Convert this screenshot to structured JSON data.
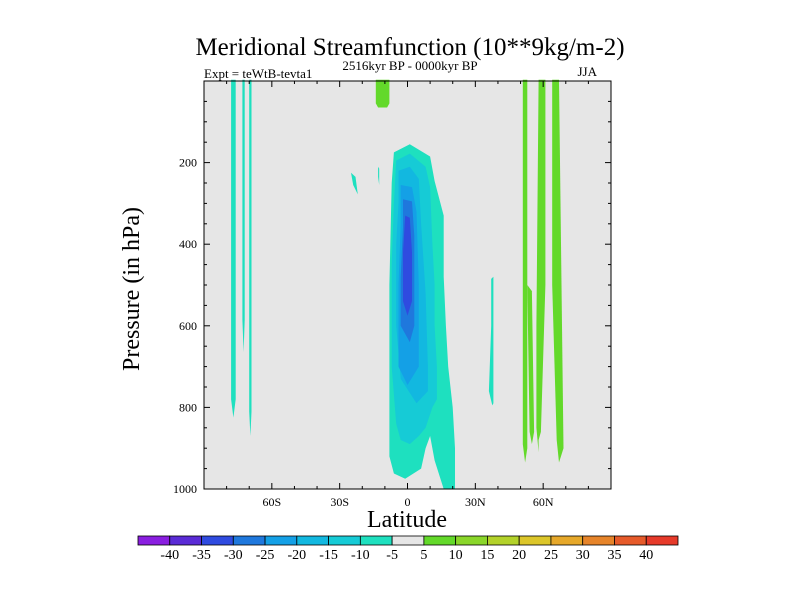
{
  "chart_data": {
    "type": "heatmap",
    "title": "Meridional Streamfunction (10**9kg/m-2)",
    "subtitle_left": "Expt = teWtB-tevta1",
    "subtitle_center": "2516kyr BP - 0000kyr BP",
    "subtitle_right": "JJA",
    "xlabel": "Latitude",
    "ylabel": "Pressure (in hPa)",
    "xlim": [
      -90,
      90
    ],
    "ylim": [
      1000,
      0
    ],
    "x_ticks": [
      {
        "value": -60,
        "label": "60S"
      },
      {
        "value": -30,
        "label": "30S"
      },
      {
        "value": 0,
        "label": "0"
      },
      {
        "value": 30,
        "label": "30N"
      },
      {
        "value": 60,
        "label": "60N"
      }
    ],
    "y_ticks": [
      {
        "value": 200,
        "label": "200"
      },
      {
        "value": 400,
        "label": "400"
      },
      {
        "value": 600,
        "label": "600"
      },
      {
        "value": 800,
        "label": "800"
      },
      {
        "value": 1000,
        "label": "1000"
      }
    ],
    "background_color": "#e6e6e6",
    "colorbar": {
      "labels": [
        "-40",
        "-35",
        "-30",
        "-25",
        "-20",
        "-15",
        "-10",
        "-5",
        "5",
        "10",
        "15",
        "20",
        "25",
        "30",
        "35",
        "40"
      ],
      "colors": [
        "#8a1ee0",
        "#5a2bd6",
        "#2f4be0",
        "#1f78dd",
        "#14a0e6",
        "#12b8e0",
        "#16cbd6",
        "#1ee0bf",
        "#e6e6e6",
        "#63d92a",
        "#8ad62a",
        "#b3d22a",
        "#dcc62a",
        "#e6a82a",
        "#e6842a",
        "#e65a2a",
        "#e63a2a"
      ]
    },
    "regions": [
      {
        "name": "sh-highlat-band-1",
        "value": -5,
        "color": "#1ee0bf",
        "points": [
          [
            -78,
            -3
          ],
          [
            -76,
            -3
          ],
          [
            -76,
            780
          ],
          [
            -77,
            825
          ],
          [
            -78,
            780
          ]
        ]
      },
      {
        "name": "sh-highlat-band-2",
        "value": -5,
        "color": "#1ee0bf",
        "points": [
          [
            -73,
            -3
          ],
          [
            -72,
            -3
          ],
          [
            -72,
            585
          ],
          [
            -72.5,
            665
          ],
          [
            -73,
            585
          ]
        ]
      },
      {
        "name": "sh-highlat-band-3",
        "value": -5,
        "color": "#1ee0bf",
        "points": [
          [
            -70,
            -3
          ],
          [
            -69,
            -3
          ],
          [
            -69,
            810
          ],
          [
            -69.5,
            870
          ],
          [
            -70,
            810
          ]
        ]
      },
      {
        "name": "nh-upper-lobe",
        "value": 5,
        "color": "#63d92a",
        "points": [
          [
            -14,
            -3
          ],
          [
            -8,
            -3
          ],
          [
            -8,
            55
          ],
          [
            -9,
            65
          ],
          [
            -13,
            65
          ],
          [
            -14,
            55
          ]
        ]
      },
      {
        "name": "sh-midlat-fleck",
        "value": -5,
        "color": "#1ee0bf",
        "points": [
          [
            -25,
            225
          ],
          [
            -23,
            235
          ],
          [
            -22,
            278
          ],
          [
            -24,
            255
          ]
        ]
      },
      {
        "name": "sh-subtrop-fleck",
        "value": -5,
        "color": "#1ee0bf",
        "points": [
          [
            -13,
            210
          ],
          [
            -12.5,
            215
          ],
          [
            -12.5,
            255
          ],
          [
            -13,
            235
          ]
        ]
      },
      {
        "name": "hadley-cell-m5",
        "value": -5,
        "color": "#1ee0bf",
        "points": [
          [
            -6,
            175
          ],
          [
            1,
            155
          ],
          [
            10,
            185
          ],
          [
            12,
            245
          ],
          [
            16,
            330
          ],
          [
            16,
            480
          ],
          [
            17,
            600
          ],
          [
            18,
            700
          ],
          [
            20,
            800
          ],
          [
            21,
            900
          ],
          [
            21,
            1000
          ],
          [
            16,
            1000
          ],
          [
            12,
            930
          ],
          [
            10,
            870
          ],
          [
            8,
            900
          ],
          [
            6,
            950
          ],
          [
            -1,
            975
          ],
          [
            -6,
            962
          ],
          [
            -8,
            920
          ],
          [
            -8,
            500
          ],
          [
            -7,
            250
          ]
        ]
      },
      {
        "name": "hadley-cell-m10",
        "value": -10,
        "color": "#16cbd6",
        "points": [
          [
            -5,
            195
          ],
          [
            1,
            178
          ],
          [
            8,
            210
          ],
          [
            10,
            260
          ],
          [
            11,
            400
          ],
          [
            12,
            500
          ],
          [
            12,
            600
          ],
          [
            13,
            700
          ],
          [
            13,
            780
          ],
          [
            11,
            800
          ],
          [
            8,
            850
          ],
          [
            5,
            870
          ],
          [
            1,
            890
          ],
          [
            -3,
            880
          ],
          [
            -5,
            840
          ],
          [
            -7,
            700
          ],
          [
            -7,
            450
          ],
          [
            -6,
            300
          ]
        ]
      },
      {
        "name": "hadley-cell-m15",
        "value": -15,
        "color": "#12b8e0",
        "points": [
          [
            -4,
            220
          ],
          [
            1,
            210
          ],
          [
            5,
            240
          ],
          [
            6,
            350
          ],
          [
            8,
            520
          ],
          [
            9,
            700
          ],
          [
            9,
            760
          ],
          [
            4,
            790
          ],
          [
            -3,
            730
          ],
          [
            -5,
            600
          ],
          [
            -5,
            400
          ],
          [
            -4,
            300
          ]
        ]
      },
      {
        "name": "hadley-cell-m20",
        "value": -20,
        "color": "#14a0e6",
        "points": [
          [
            -3,
            255
          ],
          [
            2,
            260
          ],
          [
            4,
            320
          ],
          [
            5,
            500
          ],
          [
            5,
            700
          ],
          [
            0,
            745
          ],
          [
            -4,
            700
          ],
          [
            -4,
            500
          ],
          [
            -3,
            350
          ]
        ]
      },
      {
        "name": "hadley-cell-m25",
        "value": -25,
        "color": "#1f78dd",
        "points": [
          [
            -2,
            290
          ],
          [
            2,
            295
          ],
          [
            3,
            380
          ],
          [
            3,
            600
          ],
          [
            1,
            640
          ],
          [
            -3,
            600
          ],
          [
            -3,
            480
          ],
          [
            -2,
            360
          ]
        ]
      },
      {
        "name": "hadley-cell-m30",
        "value": -30,
        "color": "#2f4be0",
        "points": [
          [
            -1,
            330
          ],
          [
            1,
            335
          ],
          [
            2,
            420
          ],
          [
            2,
            540
          ],
          [
            0,
            575
          ],
          [
            -2,
            540
          ],
          [
            -2,
            420
          ]
        ]
      },
      {
        "name": "nh-midlat-sliver",
        "value": -5,
        "color": "#1ee0bf",
        "points": [
          [
            37,
            485
          ],
          [
            38,
            480
          ],
          [
            38,
            790
          ],
          [
            37.5,
            795
          ],
          [
            36,
            760
          ],
          [
            37,
            600
          ]
        ]
      },
      {
        "name": "nh-highlat-band-1",
        "value": 5,
        "color": "#63d92a",
        "points": [
          [
            51,
            -3
          ],
          [
            53,
            -3
          ],
          [
            53,
            900
          ],
          [
            52,
            935
          ],
          [
            51,
            890
          ]
        ]
      },
      {
        "name": "nh-highlat-band-2",
        "value": 5,
        "color": "#63d92a",
        "points": [
          [
            53,
            500
          ],
          [
            55,
            515
          ],
          [
            56,
            860
          ],
          [
            55,
            890
          ],
          [
            54,
            860
          ]
        ]
      },
      {
        "name": "nh-highlat-band-3",
        "value": 5,
        "color": "#63d92a",
        "points": [
          [
            58,
            -3
          ],
          [
            61,
            -3
          ],
          [
            61,
            500
          ],
          [
            59,
            860
          ],
          [
            58,
            880
          ],
          [
            58,
            910
          ],
          [
            57,
            850
          ],
          [
            57,
            600
          ]
        ]
      },
      {
        "name": "nh-highlat-band-4",
        "value": 5,
        "color": "#63d92a",
        "points": [
          [
            64,
            -3
          ],
          [
            67,
            -3
          ],
          [
            69,
            900
          ],
          [
            67,
            935
          ],
          [
            66,
            880
          ],
          [
            64,
            500
          ]
        ]
      }
    ]
  }
}
